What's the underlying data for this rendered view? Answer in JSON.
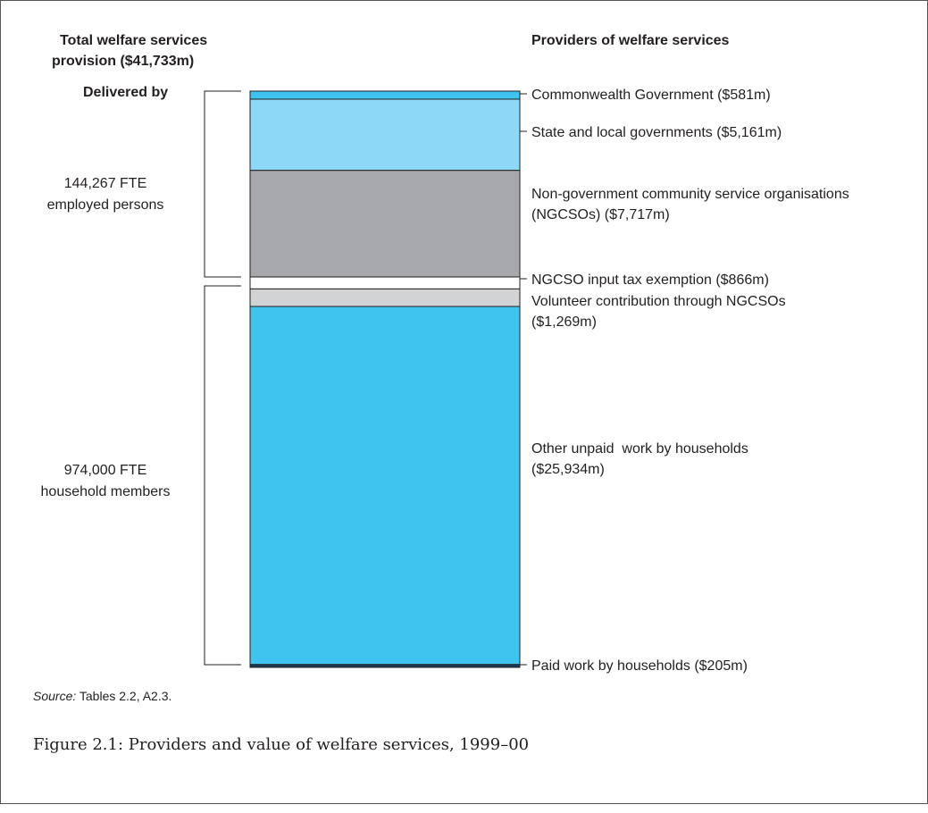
{
  "chart_data": {
    "type": "bar",
    "title": "",
    "stacked": true,
    "total_label": "Total welfare services provision ($41,733m)",
    "total_label_line1": "Total welfare services",
    "total_label_line2": "provision ($41,733m)",
    "providers_heading": "Providers of welfare services",
    "delivered_by_heading": "Delivered by",
    "unit": "$m",
    "segments": [
      {
        "name": "Commonwealth Government",
        "value": 581,
        "label": "Commonwealth Government ($581m)",
        "color": "#3ec4ef"
      },
      {
        "name": "State and local governments",
        "value": 5161,
        "label": "State and local governments ($5,161m)",
        "color": "#8dd8f6"
      },
      {
        "name": "Non-government community service organisations (NGCSOs)",
        "value": 7717,
        "label_line1": "Non-government community service organisations",
        "label_line2": "(NGCSOs) ($7,717m)",
        "color": "#a6a8ab"
      },
      {
        "name": "NGCSO input tax exemption",
        "value": 866,
        "label": "NGCSO input tax exemption ($866m)",
        "color": "#ffffff"
      },
      {
        "name": "Volunteer contribution through NGCSOs",
        "value": 1269,
        "label_line1": "Volunteer contribution through NGCSOs",
        "label_line2": "($1,269m)",
        "color": "#d2d3d5"
      },
      {
        "name": "Other unpaid work by households",
        "value": 25934,
        "label_line1": "Other unpaid  work by households",
        "label_line2": "($25,934m)",
        "color": "#3ec4ef"
      },
      {
        "name": "Paid work by households",
        "value": 205,
        "label": "Paid work by households ($205m)",
        "color": "#1b3b5c"
      }
    ],
    "groups": [
      {
        "line1": "144,267 FTE",
        "line2": "employed persons",
        "from_segment": 0,
        "to_segment": 2
      },
      {
        "line1": "974,000 FTE",
        "line2": "household members",
        "from_segment": 3,
        "to_segment": 6
      }
    ]
  },
  "source_prefix": "Source:",
  "source_text": " Tables 2.2, A2.3.",
  "caption": "Figure 2.1: Providers and value of welfare services, 1999–00"
}
